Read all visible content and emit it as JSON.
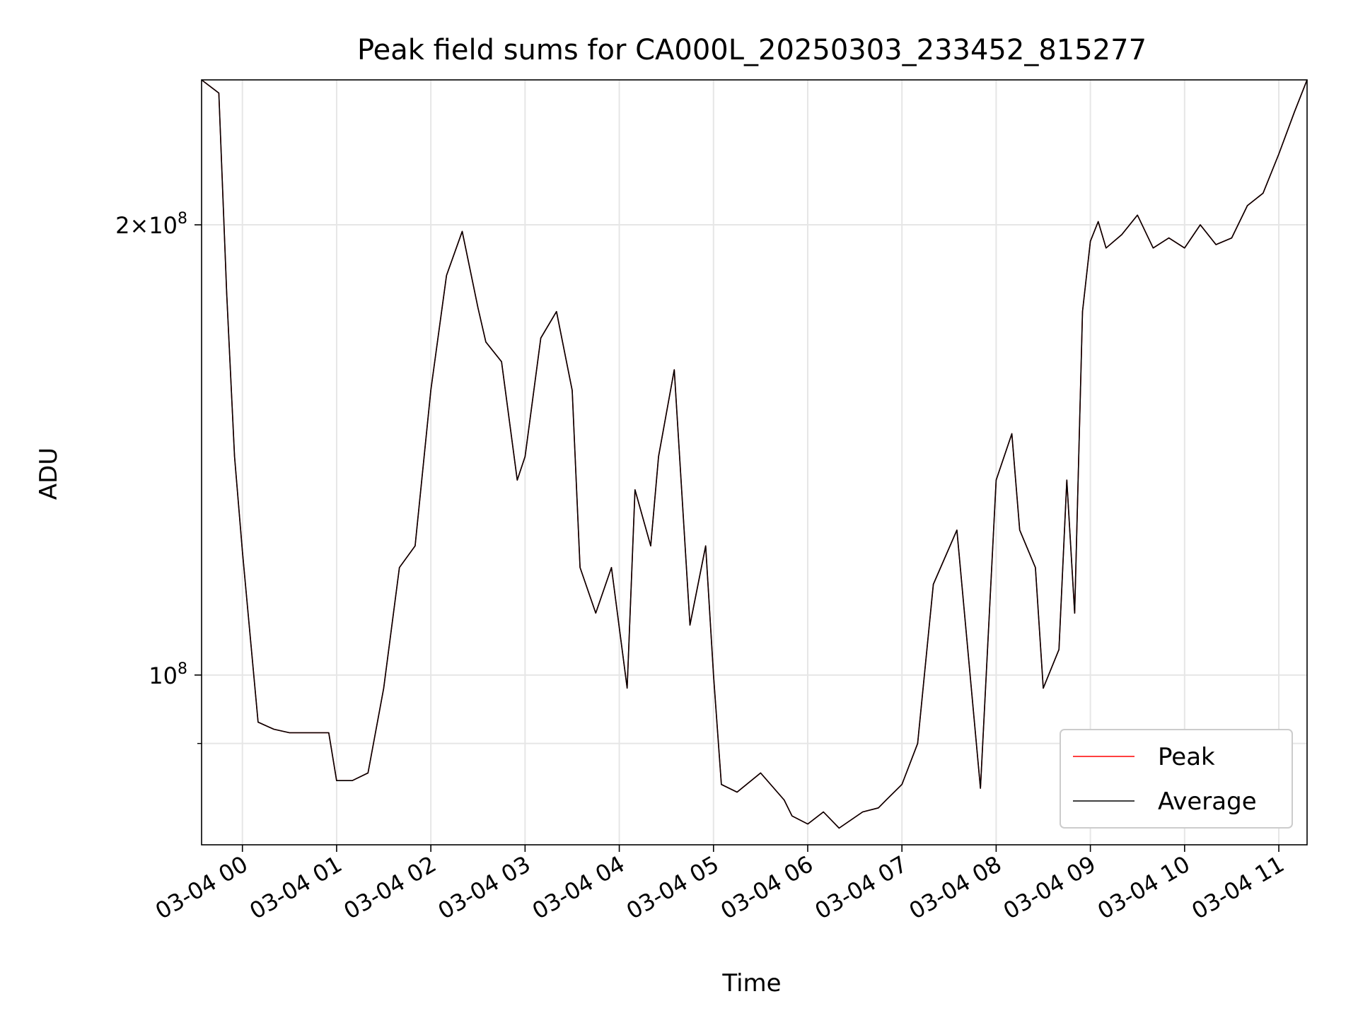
{
  "chart_data": {
    "type": "line",
    "title": "Peak field sums for CA000L_20250303_233452_815277",
    "xlabel": "Time",
    "ylabel": "ADU",
    "x_ticks": [
      "03-04 00",
      "03-04 01",
      "03-04 02",
      "03-04 03",
      "03-04 04",
      "03-04 05",
      "03-04 06",
      "03-04 07",
      "03-04 08",
      "03-04 09",
      "03-04 10",
      "03-04 11"
    ],
    "y_ticks": [
      {
        "value": 100000000,
        "base": "10",
        "exp": "8",
        "coef": ""
      },
      {
        "value": 200000000,
        "base": "10",
        "exp": "8",
        "coef": "2×"
      }
    ],
    "y_scale": "log",
    "xlim": [
      "2025-03-03 23:34",
      "2025-03-04 11:18"
    ],
    "ylim": [
      77000000,
      250000000
    ],
    "grid": true,
    "legend_position": "lower right",
    "colors": {
      "Peak": "#ff0000",
      "Average": "#000000"
    },
    "x": [
      "2025-03-03 23:34",
      "2025-03-03 23:45",
      "2025-03-03 23:50",
      "2025-03-03 23:55",
      "2025-03-04 00:00",
      "2025-03-04 00:10",
      "2025-03-04 00:20",
      "2025-03-04 00:30",
      "2025-03-04 00:40",
      "2025-03-04 00:55",
      "2025-03-04 01:00",
      "2025-03-04 01:10",
      "2025-03-04 01:20",
      "2025-03-04 01:30",
      "2025-03-04 01:40",
      "2025-03-04 01:50",
      "2025-03-04 02:00",
      "2025-03-04 02:10",
      "2025-03-04 02:20",
      "2025-03-04 02:30",
      "2025-03-04 02:35",
      "2025-03-04 02:45",
      "2025-03-04 02:55",
      "2025-03-04 03:00",
      "2025-03-04 03:10",
      "2025-03-04 03:20",
      "2025-03-04 03:30",
      "2025-03-04 03:35",
      "2025-03-04 03:45",
      "2025-03-04 03:55",
      "2025-03-04 04:05",
      "2025-03-04 04:10",
      "2025-03-04 04:20",
      "2025-03-04 04:25",
      "2025-03-04 04:35",
      "2025-03-04 04:45",
      "2025-03-04 04:55",
      "2025-03-04 05:00",
      "2025-03-04 05:05",
      "2025-03-04 05:15",
      "2025-03-04 05:30",
      "2025-03-04 05:45",
      "2025-03-04 05:50",
      "2025-03-04 06:00",
      "2025-03-04 06:10",
      "2025-03-04 06:20",
      "2025-03-04 06:35",
      "2025-03-04 06:45",
      "2025-03-04 06:50",
      "2025-03-04 07:00",
      "2025-03-04 07:10",
      "2025-03-04 07:20",
      "2025-03-04 07:35",
      "2025-03-04 07:50",
      "2025-03-04 08:00",
      "2025-03-04 08:10",
      "2025-03-04 08:15",
      "2025-03-04 08:25",
      "2025-03-04 08:30",
      "2025-03-04 08:40",
      "2025-03-04 08:45",
      "2025-03-04 08:50",
      "2025-03-04 08:55",
      "2025-03-04 09:00",
      "2025-03-04 09:05",
      "2025-03-04 09:10",
      "2025-03-04 09:20",
      "2025-03-04 09:30",
      "2025-03-04 09:40",
      "2025-03-04 09:50",
      "2025-03-04 10:00",
      "2025-03-04 10:10",
      "2025-03-04 10:20",
      "2025-03-04 10:30",
      "2025-03-04 10:40",
      "2025-03-04 10:50",
      "2025-03-04 11:00",
      "2025-03-04 11:10",
      "2025-03-04 11:18"
    ],
    "series": [
      {
        "name": "Peak",
        "values": [
          250000000,
          245000000,
          180000000,
          140000000,
          121000000,
          93000000,
          92000000,
          91500000,
          91500000,
          91500000,
          85000000,
          85000000,
          86000000,
          98000000,
          118000000,
          122000000,
          155000000,
          185000000,
          198000000,
          176000000,
          167000000,
          162000000,
          135000000,
          140000000,
          168000000,
          175000000,
          155000000,
          118000000,
          110000000,
          118000000,
          98000000,
          133000000,
          122000000,
          140000000,
          160000000,
          108000000,
          122000000,
          100000000,
          84500000,
          83500000,
          86000000,
          82500000,
          80500000,
          79500000,
          81000000,
          79000000,
          81000000,
          81500000,
          82500000,
          84500000,
          90000000,
          115000000,
          125000000,
          84000000,
          135000000,
          145000000,
          125000000,
          118000000,
          98000000,
          104000000,
          135000000,
          110000000,
          175000000,
          195000000,
          201000000,
          193000000,
          197000000,
          203000000,
          193000000,
          196000000,
          193000000,
          200000000,
          194000000,
          196000000,
          206000000,
          210000000,
          223000000,
          238000000,
          250000000
        ]
      },
      {
        "name": "Average",
        "values": [
          250000000,
          245000000,
          180000000,
          140000000,
          121000000,
          93000000,
          92000000,
          91500000,
          91500000,
          91500000,
          85000000,
          85000000,
          86000000,
          98000000,
          118000000,
          122000000,
          155000000,
          185000000,
          198000000,
          176000000,
          167000000,
          162000000,
          135000000,
          140000000,
          168000000,
          175000000,
          155000000,
          118000000,
          110000000,
          118000000,
          98000000,
          133000000,
          122000000,
          140000000,
          160000000,
          108000000,
          122000000,
          100000000,
          84500000,
          83500000,
          86000000,
          82500000,
          80500000,
          79500000,
          81000000,
          79000000,
          81000000,
          81500000,
          82500000,
          84500000,
          90000000,
          115000000,
          125000000,
          84000000,
          135000000,
          145000000,
          125000000,
          118000000,
          98000000,
          104000000,
          135000000,
          110000000,
          175000000,
          195000000,
          201000000,
          193000000,
          197000000,
          203000000,
          193000000,
          196000000,
          193000000,
          200000000,
          194000000,
          196000000,
          206000000,
          210000000,
          223000000,
          238000000,
          250000000
        ]
      }
    ],
    "legend": [
      "Peak",
      "Average"
    ]
  }
}
